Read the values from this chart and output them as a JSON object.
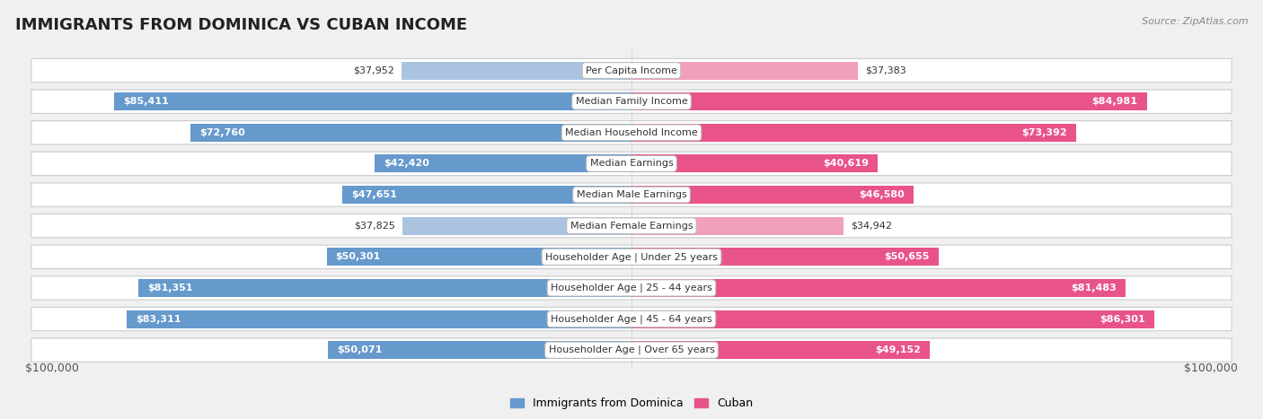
{
  "title": "IMMIGRANTS FROM DOMINICA VS CUBAN INCOME",
  "source": "Source: ZipAtlas.com",
  "categories": [
    "Per Capita Income",
    "Median Family Income",
    "Median Household Income",
    "Median Earnings",
    "Median Male Earnings",
    "Median Female Earnings",
    "Householder Age | Under 25 years",
    "Householder Age | 25 - 44 years",
    "Householder Age | 45 - 64 years",
    "Householder Age | Over 65 years"
  ],
  "dominica_values": [
    37952,
    85411,
    72760,
    42420,
    47651,
    37825,
    50301,
    81351,
    83311,
    50071
  ],
  "cuban_values": [
    37383,
    84981,
    73392,
    40619,
    46580,
    34942,
    50655,
    81483,
    86301,
    49152
  ],
  "dominica_labels": [
    "$37,952",
    "$85,411",
    "$72,760",
    "$42,420",
    "$47,651",
    "$37,825",
    "$50,301",
    "$81,351",
    "$83,311",
    "$50,071"
  ],
  "cuban_labels": [
    "$37,383",
    "$84,981",
    "$73,392",
    "$40,619",
    "$46,580",
    "$34,942",
    "$50,655",
    "$81,483",
    "$86,301",
    "$49,152"
  ],
  "max_val": 100000,
  "dominica_color_high": "#6699cc",
  "dominica_color_low": "#aac4e0",
  "cuban_color_high": "#e8538a",
  "cuban_color_low": "#f0a0b8",
  "row_bg_color": "white",
  "row_border_color": "#cccccc",
  "fig_bg_color": "#f0f0f0",
  "legend_dominica": "Immigrants from Dominica",
  "legend_cuban": "Cuban",
  "xlabel_left": "$100,000",
  "xlabel_right": "$100,000",
  "title_fontsize": 13,
  "source_fontsize": 8,
  "label_fontsize": 8,
  "category_fontsize": 8,
  "bar_height": 0.58,
  "threshold_pct": 0.4,
  "legend_dominica_color": "#6699cc",
  "legend_cuban_color": "#e8538a"
}
